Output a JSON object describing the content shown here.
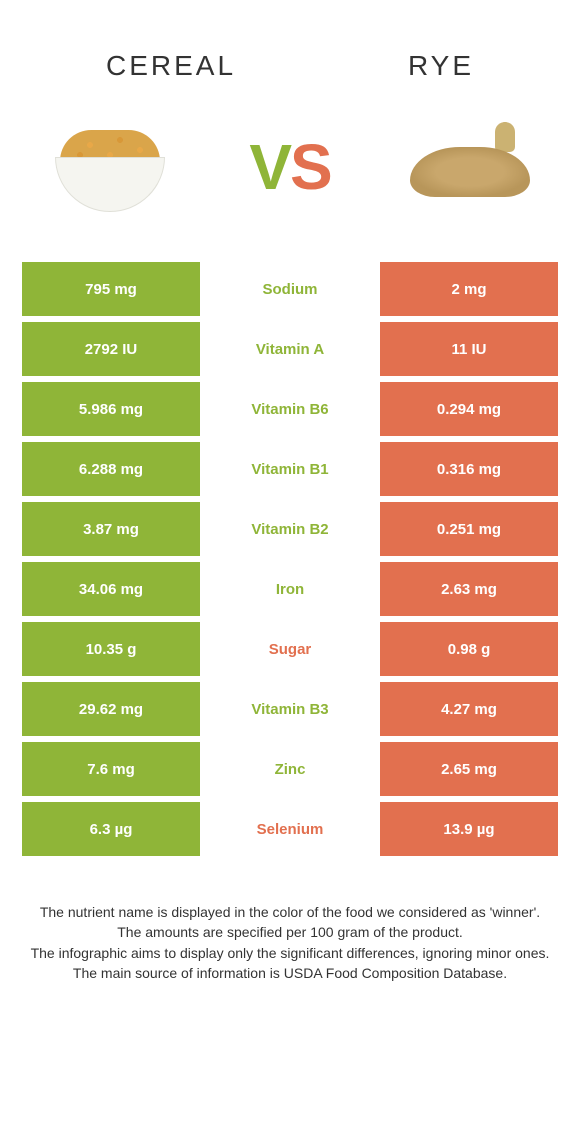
{
  "header": {
    "left_title": "Cereal",
    "right_title": "Rye"
  },
  "vs": {
    "v": "V",
    "s": "S"
  },
  "colors": {
    "left": "#8fb538",
    "right": "#e2704f",
    "left_text": "#8fb538",
    "right_text": "#e2704f",
    "cell_text": "#ffffff",
    "bg": "#ffffff"
  },
  "rows": [
    {
      "left": "795 mg",
      "label": "Sodium",
      "right": "2 mg",
      "winner": "left"
    },
    {
      "left": "2792 IU",
      "label": "Vitamin A",
      "right": "11 IU",
      "winner": "left"
    },
    {
      "left": "5.986 mg",
      "label": "Vitamin B6",
      "right": "0.294 mg",
      "winner": "left"
    },
    {
      "left": "6.288 mg",
      "label": "Vitamin B1",
      "right": "0.316 mg",
      "winner": "left"
    },
    {
      "left": "3.87 mg",
      "label": "Vitamin B2",
      "right": "0.251 mg",
      "winner": "left"
    },
    {
      "left": "34.06 mg",
      "label": "Iron",
      "right": "2.63 mg",
      "winner": "left"
    },
    {
      "left": "10.35 g",
      "label": "Sugar",
      "right": "0.98 g",
      "winner": "right"
    },
    {
      "left": "29.62 mg",
      "label": "Vitamin B3",
      "right": "4.27 mg",
      "winner": "left"
    },
    {
      "left": "7.6 mg",
      "label": "Zinc",
      "right": "2.65 mg",
      "winner": "left"
    },
    {
      "left": "6.3 µg",
      "label": "Selenium",
      "right": "13.9 µg",
      "winner": "right"
    }
  ],
  "footer": {
    "line1": "The nutrient name is displayed in the color of the food we considered as 'winner'.",
    "line2": "The amounts are specified per 100 gram of the product.",
    "line3": "The infographic aims to display only the significant differences, ignoring minor ones.",
    "line4": "The main source of information is USDA Food Composition Database."
  }
}
